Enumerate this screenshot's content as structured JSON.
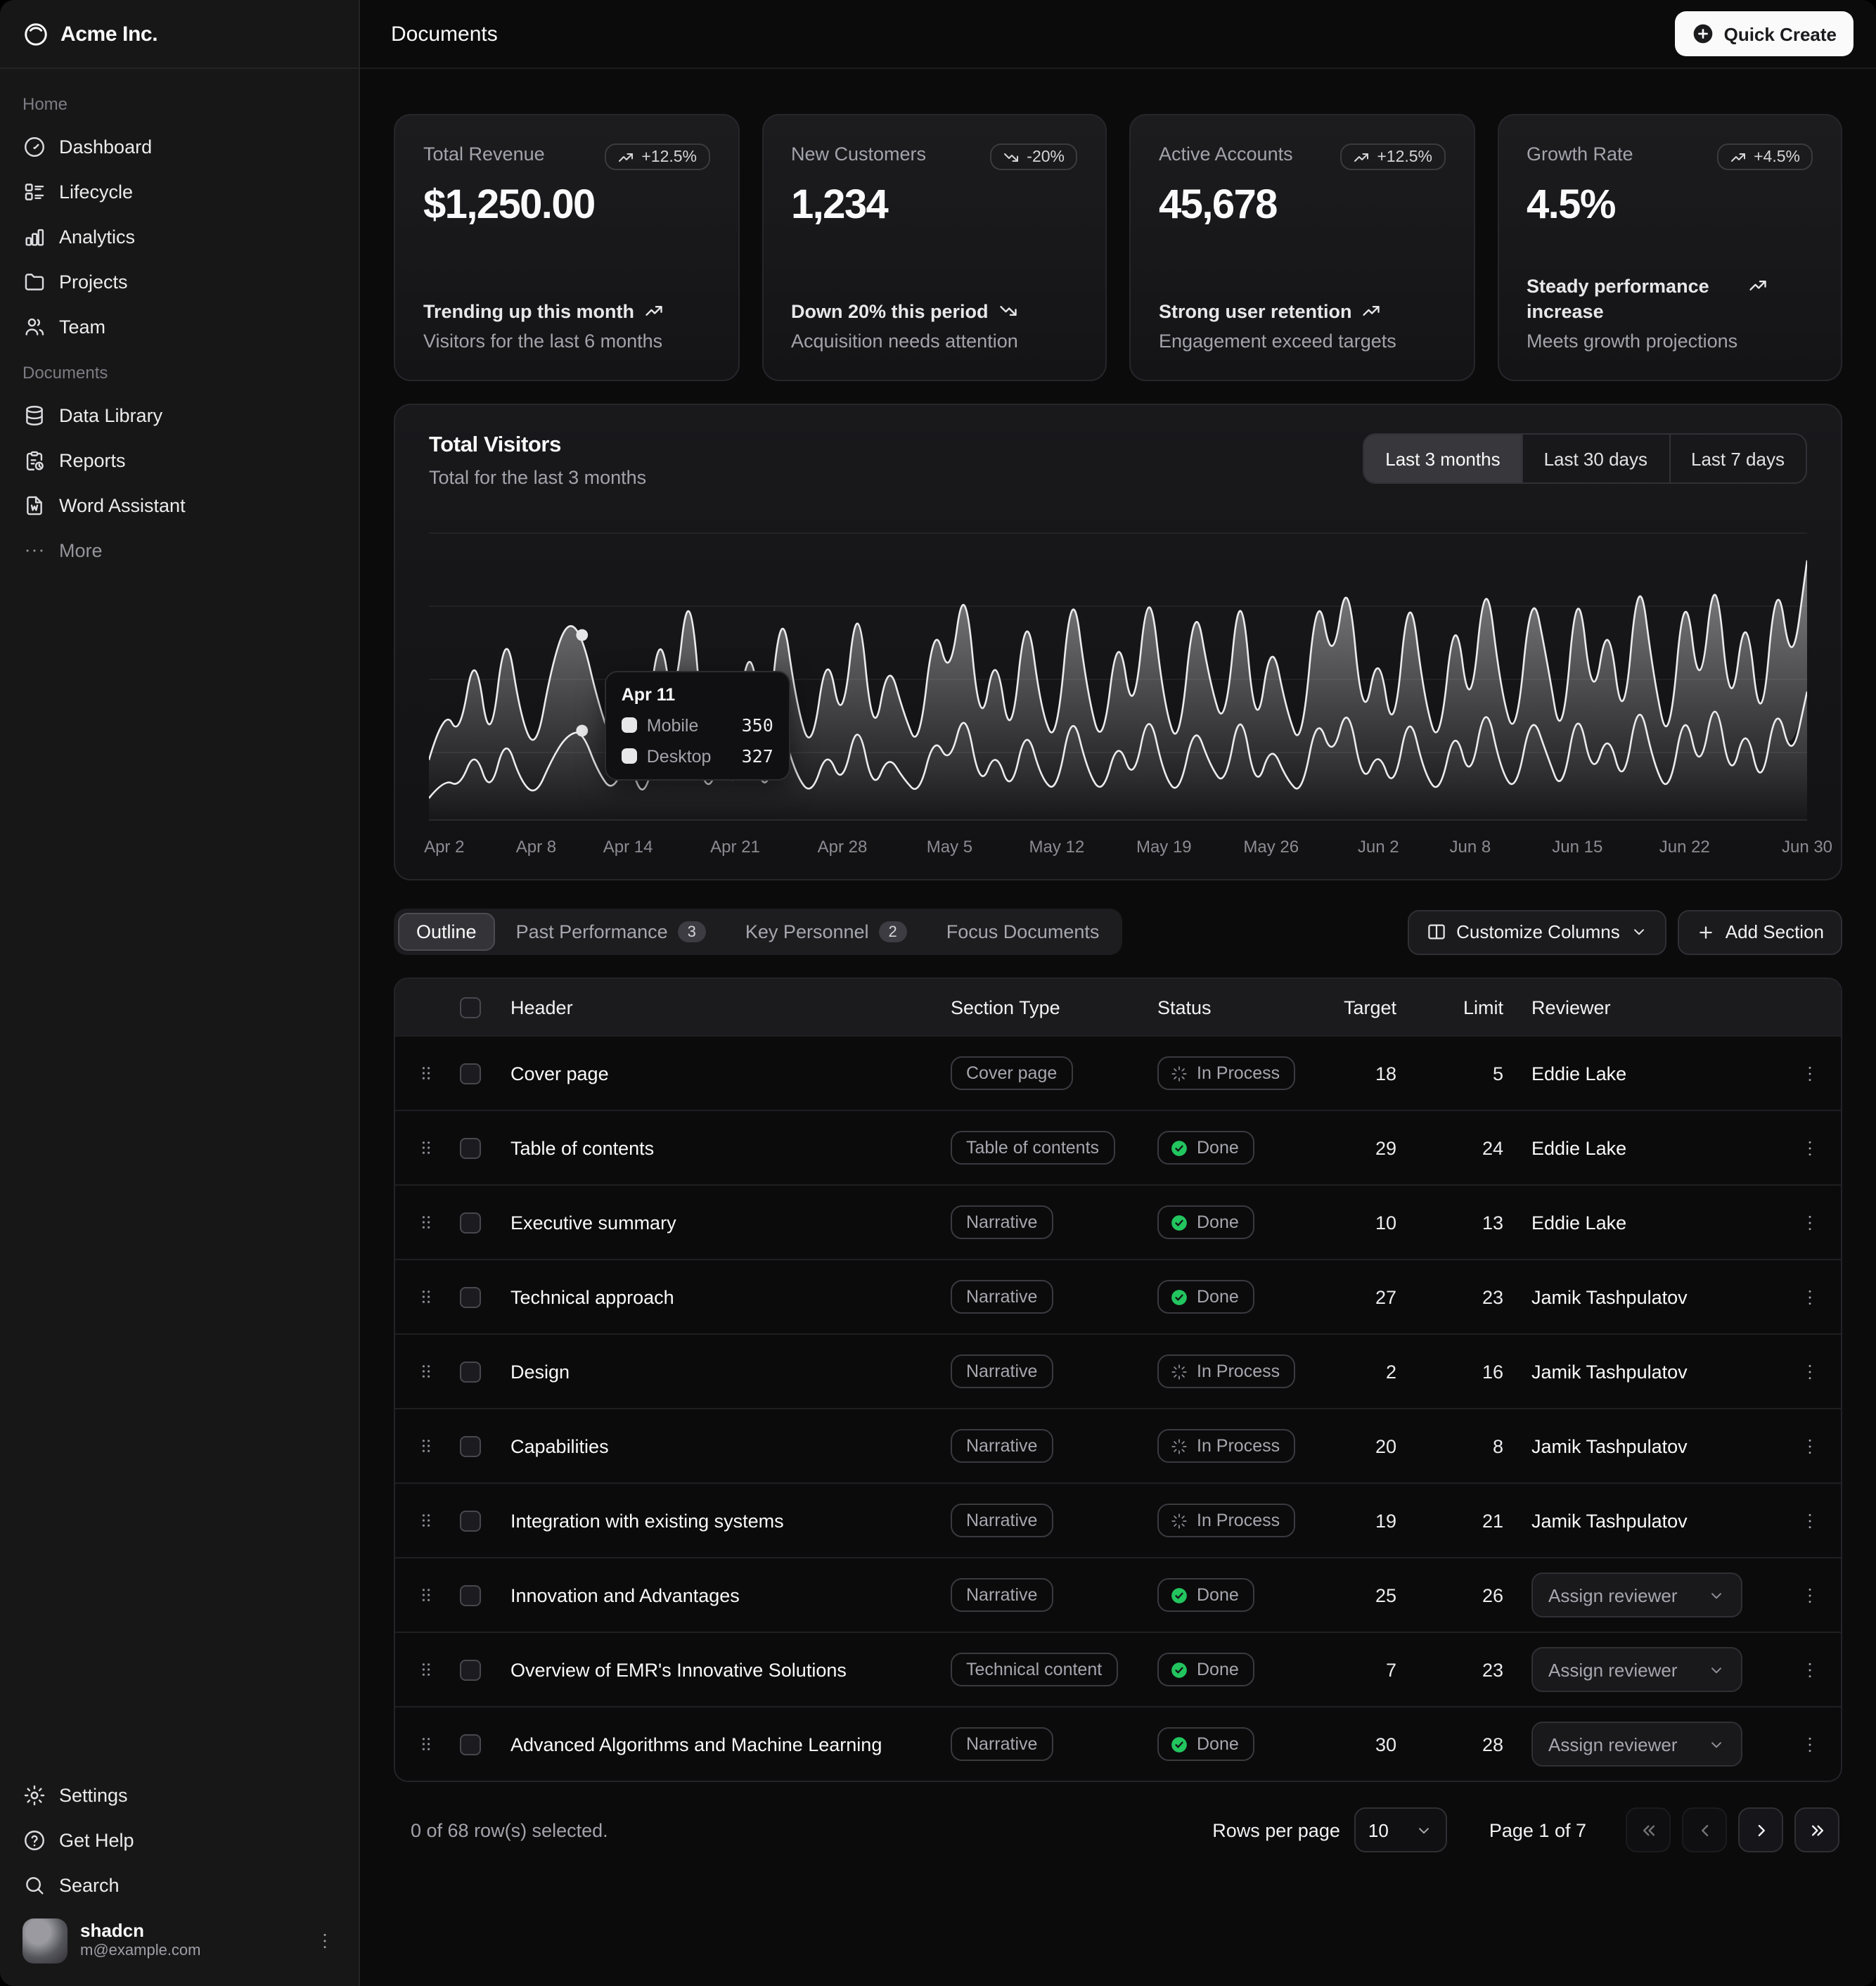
{
  "header": {
    "title": "Documents",
    "quick_create_label": "Quick Create",
    "quick_create_icon": "circle-plus"
  },
  "sidebar": {
    "brand": {
      "name": "Acme Inc.",
      "icon": "logo-ring"
    },
    "groups": [
      {
        "label": "Home",
        "items": [
          {
            "label": "Dashboard",
            "icon": "dashboard"
          },
          {
            "label": "Lifecycle",
            "icon": "list-details"
          },
          {
            "label": "Analytics",
            "icon": "chart-bar"
          },
          {
            "label": "Projects",
            "icon": "folder"
          },
          {
            "label": "Team",
            "icon": "users"
          }
        ]
      },
      {
        "label": "Documents",
        "items": [
          {
            "label": "Data Library",
            "icon": "database"
          },
          {
            "label": "Reports",
            "icon": "report"
          },
          {
            "label": "Word Assistant",
            "icon": "file-word"
          },
          {
            "label": "More",
            "icon": "dots",
            "muted": true
          }
        ]
      }
    ],
    "footer_items": [
      {
        "label": "Settings",
        "icon": "settings"
      },
      {
        "label": "Get Help",
        "icon": "help"
      },
      {
        "label": "Search",
        "icon": "search"
      }
    ],
    "user": {
      "name": "shadcn",
      "email": "m@example.com",
      "menu_icon": "dots-vertical"
    }
  },
  "stat_cards": [
    {
      "label": "Total Revenue",
      "badge": "+12.5%",
      "trend": "up",
      "value": "$1,250.00",
      "footer_title": "Trending up this month",
      "footer_note": "Visitors for the last 6 months"
    },
    {
      "label": "New Customers",
      "badge": "-20%",
      "trend": "down",
      "value": "1,234",
      "footer_title": "Down 20% this period",
      "footer_note": "Acquisition needs attention"
    },
    {
      "label": "Active Accounts",
      "badge": "+12.5%",
      "trend": "up",
      "value": "45,678",
      "footer_title": "Strong user retention",
      "footer_note": "Engagement exceed targets"
    },
    {
      "label": "Growth Rate",
      "badge": "+4.5%",
      "trend": "up",
      "value": "4.5%",
      "footer_title": "Steady performance increase",
      "footer_note": "Meets growth projections"
    }
  ],
  "visitors_card": {
    "title": "Total Visitors",
    "subtitle": "Total for the last 3 months",
    "range_options": [
      "Last 3 months",
      "Last 30 days",
      "Last 7 days"
    ],
    "active_range": "Last 3 months"
  },
  "chart_data": {
    "type": "area",
    "stacked": true,
    "title": "Total Visitors",
    "x_start": "Apr 1",
    "x_end": "Jun 30",
    "tick_labels": [
      "Apr 2",
      "Apr 8",
      "Apr 14",
      "Apr 21",
      "Apr 28",
      "May 5",
      "May 12",
      "May 19",
      "May 26",
      "Jun 2",
      "Jun 8",
      "Jun 15",
      "Jun 22",
      "Jun 30"
    ],
    "tick_day_index": [
      1,
      7,
      13,
      20,
      27,
      34,
      41,
      48,
      55,
      62,
      68,
      75,
      82,
      90
    ],
    "grid": "horizontal",
    "y_axis_visible": false,
    "y_scale_max": 1050,
    "legend_position": "tooltip-only",
    "series": [
      {
        "name": "Desktop",
        "values": [
          80,
          150,
          120,
          260,
          90,
          310,
          140,
          90,
          220,
          310,
          327,
          180,
          100,
          240,
          60,
          300,
          150,
          420,
          90,
          200,
          120,
          280,
          80,
          350,
          160,
          90,
          260,
          120,
          380,
          100,
          240,
          150,
          90,
          310,
          200,
          420,
          110,
          260,
          90,
          350,
          150,
          100,
          410,
          180,
          90,
          300,
          130,
          420,
          160,
          90,
          360,
          200,
          120,
          430,
          100,
          280,
          150,
          90,
          390,
          220,
          440,
          120,
          260,
          100,
          410,
          170,
          90,
          350,
          130,
          450,
          180,
          100,
          400,
          240,
          90,
          430,
          150,
          330,
          110,
          460,
          200,
          90,
          420,
          160,
          480,
          130,
          360,
          100,
          440,
          210,
          470
        ]
      },
      {
        "name": "Mobile",
        "values": [
          140,
          260,
          180,
          380,
          150,
          420,
          230,
          160,
          340,
          420,
          350,
          260,
          170,
          360,
          120,
          430,
          240,
          490,
          160,
          310,
          200,
          400,
          140,
          470,
          260,
          150,
          380,
          200,
          480,
          170,
          350,
          240,
          160,
          430,
          300,
          490,
          190,
          380,
          160,
          460,
          240,
          170,
          490,
          280,
          160,
          420,
          210,
          490,
          260,
          160,
          470,
          300,
          200,
          490,
          180,
          400,
          250,
          160,
          480,
          330,
          490,
          210,
          380,
          170,
          480,
          270,
          160,
          450,
          220,
          490,
          290,
          180,
          470,
          350,
          160,
          490,
          250,
          430,
          190,
          490,
          310,
          160,
          480,
          260,
          490,
          220,
          450,
          180,
          490,
          320,
          480
        ]
      }
    ],
    "hover": {
      "day_index": 10,
      "date": "Apr 11",
      "rows": [
        {
          "label": "Mobile",
          "value": "350"
        },
        {
          "label": "Desktop",
          "value": "327"
        }
      ]
    }
  },
  "section_tabs": {
    "tabs": [
      {
        "label": "Outline",
        "active": true
      },
      {
        "label": "Past Performance",
        "badge": "3"
      },
      {
        "label": "Key Personnel",
        "badge": "2"
      },
      {
        "label": "Focus Documents"
      }
    ],
    "customize_columns_label": "Customize Columns",
    "add_section_label": "Add Section"
  },
  "table": {
    "columns": {
      "header": "Header",
      "section_type": "Section Type",
      "status": "Status",
      "target": "Target",
      "limit": "Limit",
      "reviewer": "Reviewer"
    },
    "assign_reviewer_placeholder": "Assign reviewer",
    "status_icons": {
      "Done": "circle-check",
      "In Process": "loader"
    },
    "rows": [
      {
        "header": "Cover page",
        "section_type": "Cover page",
        "status": "In Process",
        "target": "18",
        "limit": "5",
        "reviewer": "Eddie Lake"
      },
      {
        "header": "Table of contents",
        "section_type": "Table of contents",
        "status": "Done",
        "target": "29",
        "limit": "24",
        "reviewer": "Eddie Lake"
      },
      {
        "header": "Executive summary",
        "section_type": "Narrative",
        "status": "Done",
        "target": "10",
        "limit": "13",
        "reviewer": "Eddie Lake"
      },
      {
        "header": "Technical approach",
        "section_type": "Narrative",
        "status": "Done",
        "target": "27",
        "limit": "23",
        "reviewer": "Jamik Tashpulatov"
      },
      {
        "header": "Design",
        "section_type": "Narrative",
        "status": "In Process",
        "target": "2",
        "limit": "16",
        "reviewer": "Jamik Tashpulatov"
      },
      {
        "header": "Capabilities",
        "section_type": "Narrative",
        "status": "In Process",
        "target": "20",
        "limit": "8",
        "reviewer": "Jamik Tashpulatov"
      },
      {
        "header": "Integration with existing systems",
        "section_type": "Narrative",
        "status": "In Process",
        "target": "19",
        "limit": "21",
        "reviewer": "Jamik Tashpulatov"
      },
      {
        "header": "Innovation and Advantages",
        "section_type": "Narrative",
        "status": "Done",
        "target": "25",
        "limit": "26",
        "reviewer": null
      },
      {
        "header": "Overview of EMR's Innovative Solutions",
        "section_type": "Technical content",
        "status": "Done",
        "target": "7",
        "limit": "23",
        "reviewer": null
      },
      {
        "header": "Advanced Algorithms and Machine Learning",
        "section_type": "Narrative",
        "status": "Done",
        "target": "30",
        "limit": "28",
        "reviewer": null
      }
    ]
  },
  "table_footer": {
    "selection_text": "0 of 68 row(s) selected.",
    "rows_per_page_label": "Rows per page",
    "rows_per_page_value": "10",
    "page_text": "Page 1 of 7",
    "pagination_icons": [
      "chevrons-left",
      "chevron-left",
      "chevron-right",
      "chevrons-right"
    ]
  },
  "colors": {
    "green": "#22c55e",
    "background": "#0b0b0c",
    "sidebar": "#171717",
    "card_border": "#26262a",
    "muted_text": "#a1a1aa",
    "text": "#fafafa"
  }
}
